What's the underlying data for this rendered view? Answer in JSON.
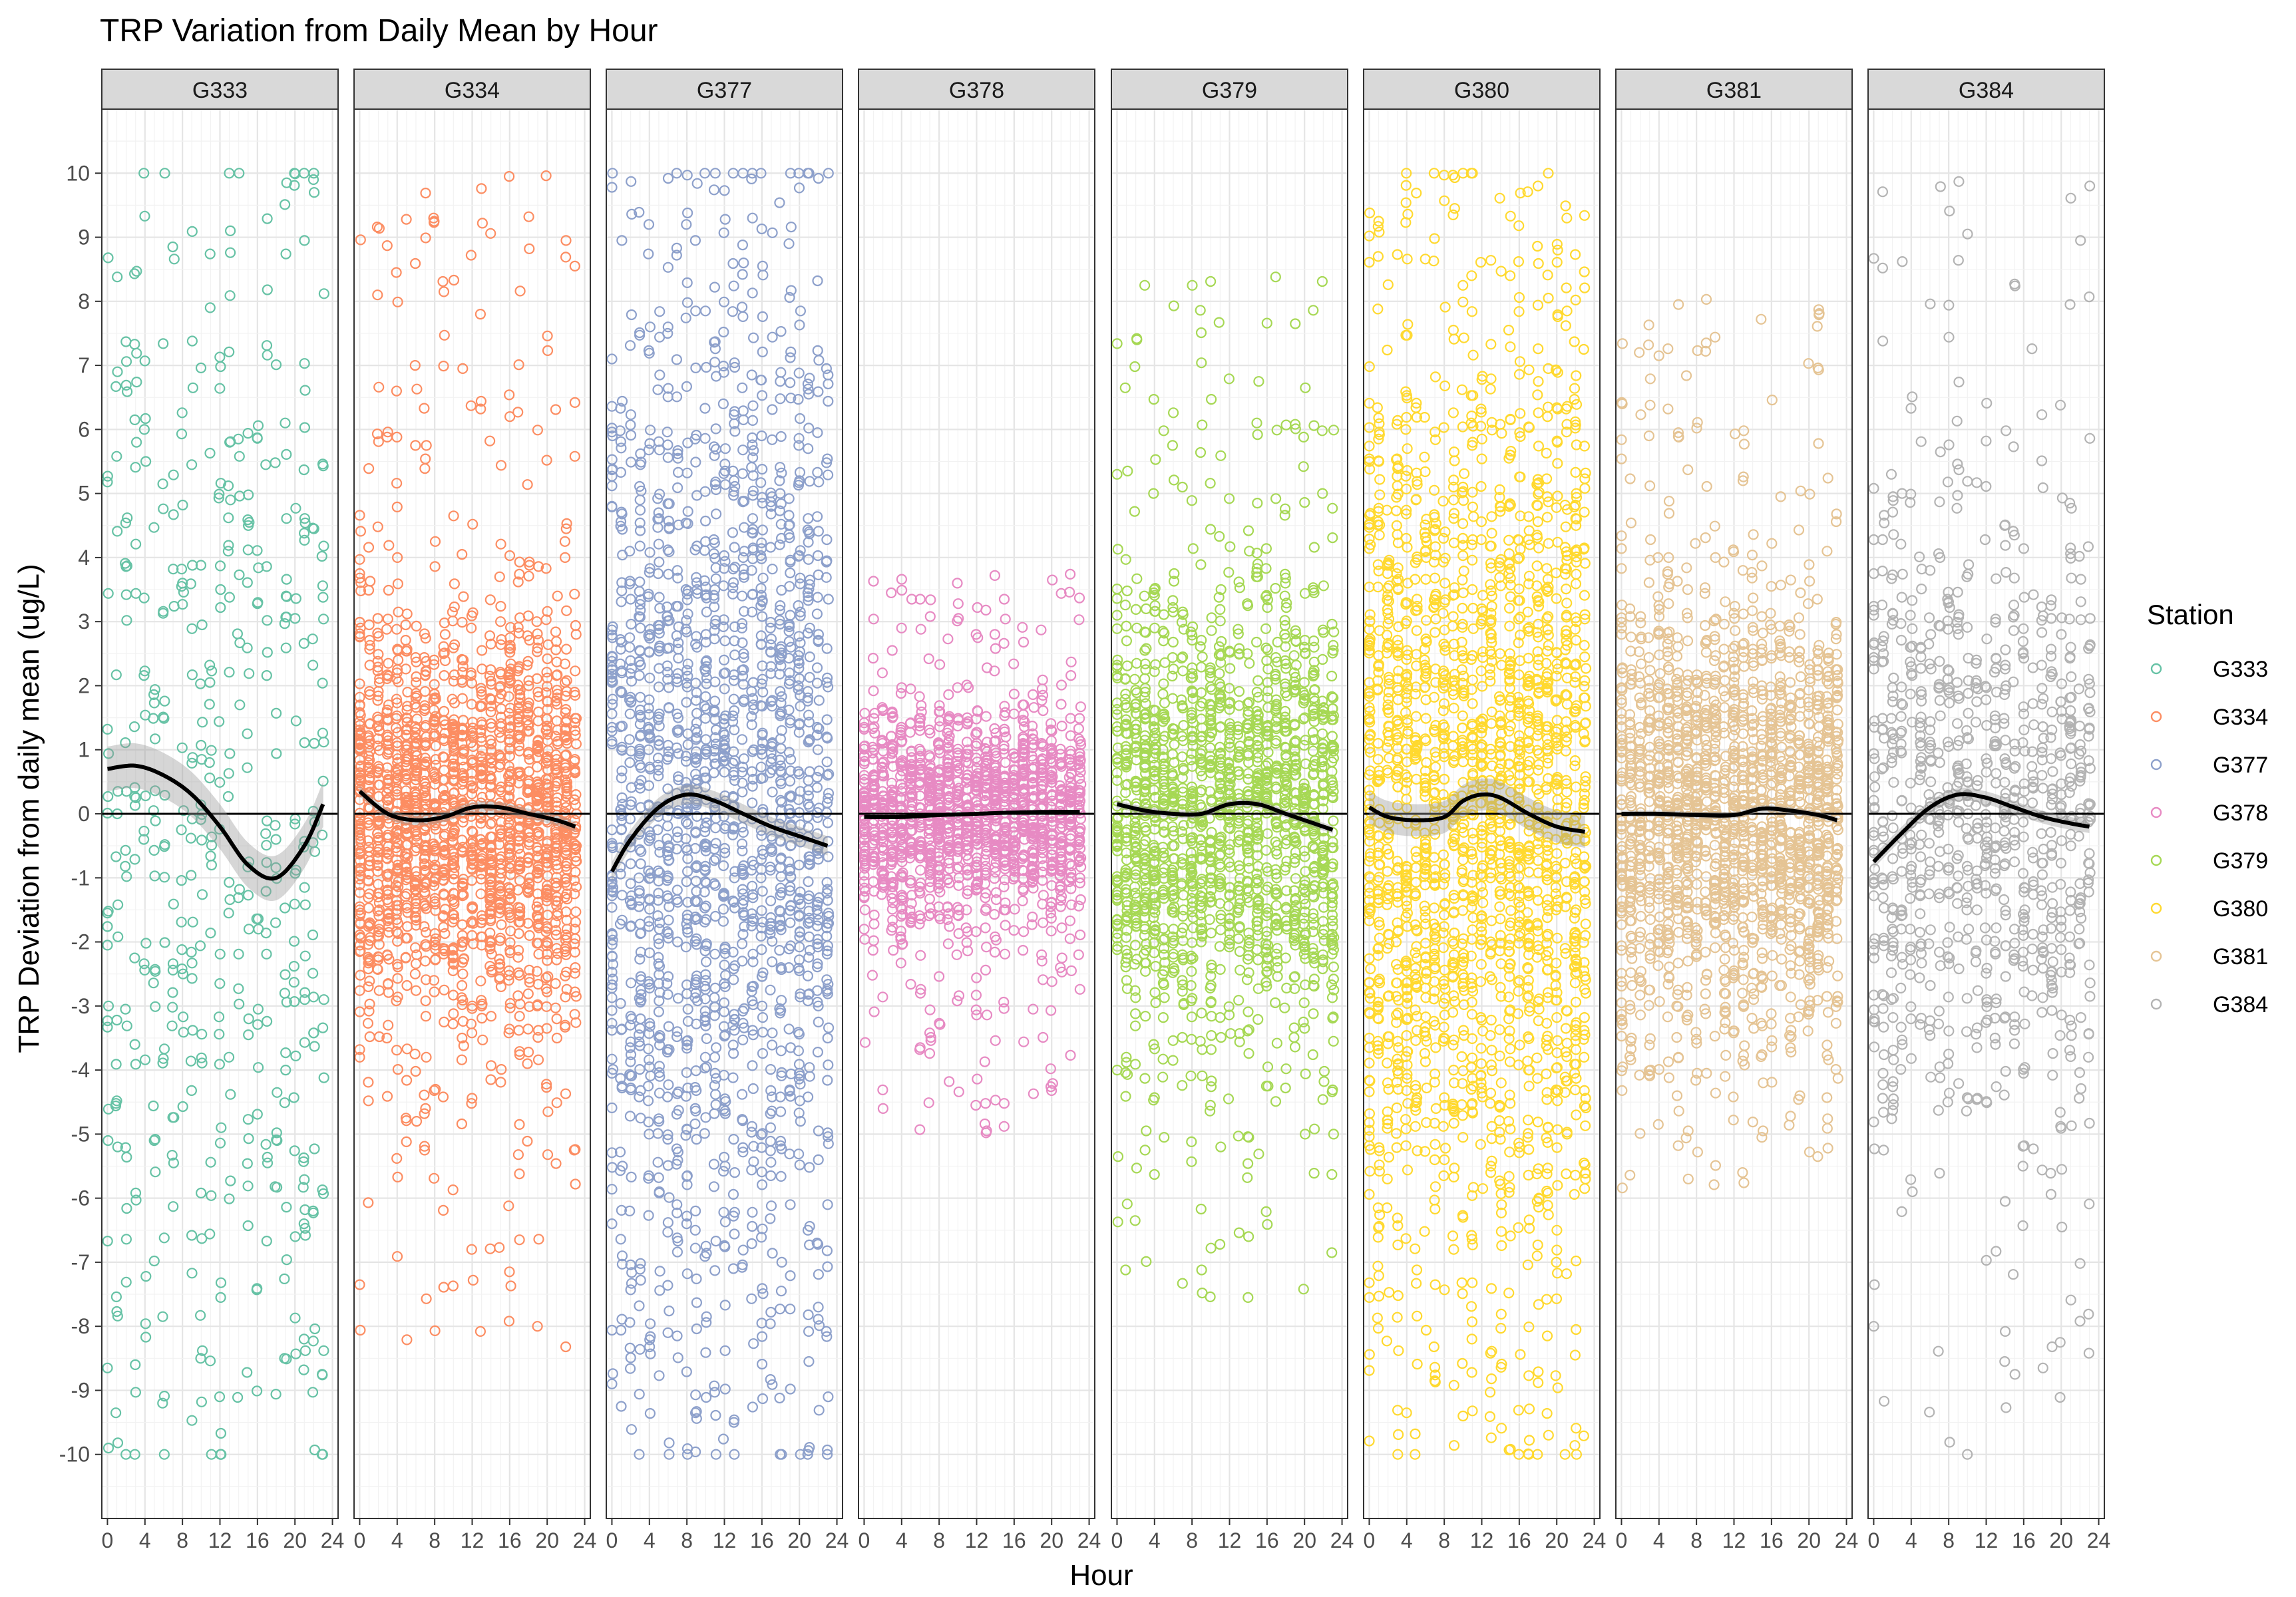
{
  "chart_data": {
    "type": "scatter",
    "title": "TRP Variation from Daily Mean by Hour",
    "xlabel": "Hour",
    "ylabel": "TRP Deviation from daily mean (ug/L)",
    "xlim": [
      -0.6,
      24.6
    ],
    "ylim": [
      -11,
      11
    ],
    "x_ticks": [
      0,
      4,
      8,
      12,
      16,
      20,
      24
    ],
    "y_ticks": [
      10,
      9,
      8,
      7,
      6,
      5,
      4,
      3,
      2,
      1,
      0,
      -1,
      -2,
      -3,
      -4,
      -5,
      -6,
      -7,
      -8,
      -9,
      -10
    ],
    "reference_line_y": 0,
    "grid": true,
    "legend": {
      "title": "Station",
      "position": "right"
    },
    "panels": [
      {
        "station": "G333",
        "color": "#66C2A5",
        "n_points": 520,
        "spread": 5.2,
        "y_range": [
          -10,
          10
        ],
        "smooth": {
          "x": [
            0,
            3,
            6,
            9,
            12,
            15,
            18,
            21,
            23
          ],
          "y": [
            0.7,
            0.75,
            0.6,
            0.3,
            -0.2,
            -0.8,
            -1.0,
            -0.5,
            0.15
          ],
          "se": 0.35
        }
      },
      {
        "station": "G334",
        "color": "#FC8D62",
        "n_points": 1900,
        "spread": 1.6,
        "y_range": [
          -8.4,
          10
        ],
        "smooth": {
          "x": [
            0,
            3,
            6,
            9,
            12,
            15,
            18,
            21,
            23
          ],
          "y": [
            0.35,
            0.0,
            -0.1,
            -0.05,
            0.1,
            0.1,
            0.0,
            -0.1,
            -0.2
          ],
          "se": 0.08
        }
      },
      {
        "station": "G377",
        "color": "#8DA0CB",
        "n_points": 1800,
        "spread": 4.0,
        "y_range": [
          -10,
          10
        ],
        "smooth": {
          "x": [
            0,
            2,
            5,
            8,
            11,
            14,
            17,
            20,
            23
          ],
          "y": [
            -0.9,
            -0.4,
            0.1,
            0.3,
            0.2,
            0.0,
            -0.2,
            -0.35,
            -0.5
          ],
          "se": 0.15
        }
      },
      {
        "station": "G378",
        "color": "#E78AC3",
        "n_points": 1500,
        "spread": 0.85,
        "y_range": [
          -5,
          3.8
        ],
        "smooth": {
          "x": [
            0,
            4,
            8,
            12,
            16,
            20,
            23
          ],
          "y": [
            -0.05,
            -0.05,
            -0.02,
            0.0,
            0.02,
            0.03,
            0.03
          ],
          "se": 0.03
        }
      },
      {
        "station": "G379",
        "color": "#A6D854",
        "n_points": 1700,
        "spread": 1.7,
        "y_range": [
          -7.8,
          8.4
        ],
        "smooth": {
          "x": [
            0,
            3,
            6,
            9,
            12,
            15,
            18,
            21,
            23
          ],
          "y": [
            0.15,
            0.05,
            0.0,
            0.0,
            0.15,
            0.15,
            0.0,
            -0.15,
            -0.25
          ],
          "se": 0.06
        }
      },
      {
        "station": "G380",
        "color": "#FFD92F",
        "n_points": 2100,
        "spread": 3.6,
        "y_range": [
          -10,
          10
        ],
        "smooth": {
          "x": [
            0,
            2,
            5,
            8,
            10,
            12,
            14,
            17,
            20,
            23
          ],
          "y": [
            0.1,
            -0.05,
            -0.1,
            -0.05,
            0.2,
            0.3,
            0.25,
            0.0,
            -0.2,
            -0.28
          ],
          "se": 0.25
        }
      },
      {
        "station": "G381",
        "color": "#E5C494",
        "n_points": 1900,
        "spread": 1.7,
        "y_range": [
          -5.9,
          8.2
        ],
        "smooth": {
          "x": [
            0,
            4,
            8,
            12,
            15,
            18,
            21,
            23
          ],
          "y": [
            0.0,
            0.0,
            -0.02,
            -0.02,
            0.08,
            0.05,
            -0.02,
            -0.1
          ],
          "se": 0.05
        }
      },
      {
        "station": "G384",
        "color": "#B3B3B3",
        "n_points": 950,
        "spread": 2.4,
        "y_range": [
          -10,
          10
        ],
        "smooth": {
          "x": [
            0,
            3,
            6,
            9,
            12,
            15,
            18,
            21,
            23
          ],
          "y": [
            -0.75,
            -0.3,
            0.1,
            0.3,
            0.25,
            0.1,
            -0.05,
            -0.15,
            -0.2
          ],
          "se": 0.1
        }
      }
    ]
  }
}
